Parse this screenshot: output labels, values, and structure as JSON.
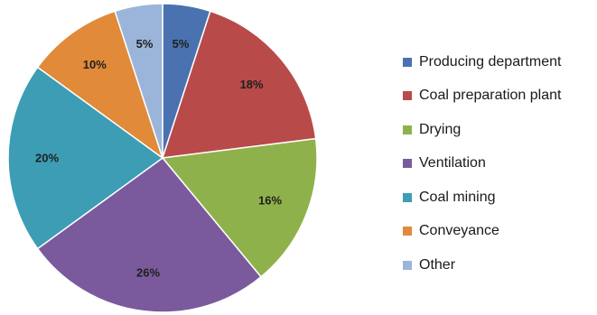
{
  "chart_data": {
    "type": "pie",
    "title": "",
    "legend_position": "right",
    "slices": [
      {
        "label": "Producing department",
        "value": 5,
        "value_label": "5%",
        "color": "#4a72b0"
      },
      {
        "label": "Coal preparation plant",
        "value": 18,
        "value_label": "18%",
        "color": "#b94a4a"
      },
      {
        "label": "Drying",
        "value": 16,
        "value_label": "16%",
        "color": "#8fb14b"
      },
      {
        "label": "Ventilation",
        "value": 26,
        "value_label": "26%",
        "color": "#7a5a9c"
      },
      {
        "label": "Coal mining",
        "value": 20,
        "value_label": "20%",
        "color": "#3c9db4"
      },
      {
        "label": "Conveyance",
        "value": 10,
        "value_label": "10%",
        "color": "#e08a3a"
      },
      {
        "label": "Other",
        "value": 5,
        "value_label": "5%",
        "color": "#9bb5da"
      }
    ]
  }
}
